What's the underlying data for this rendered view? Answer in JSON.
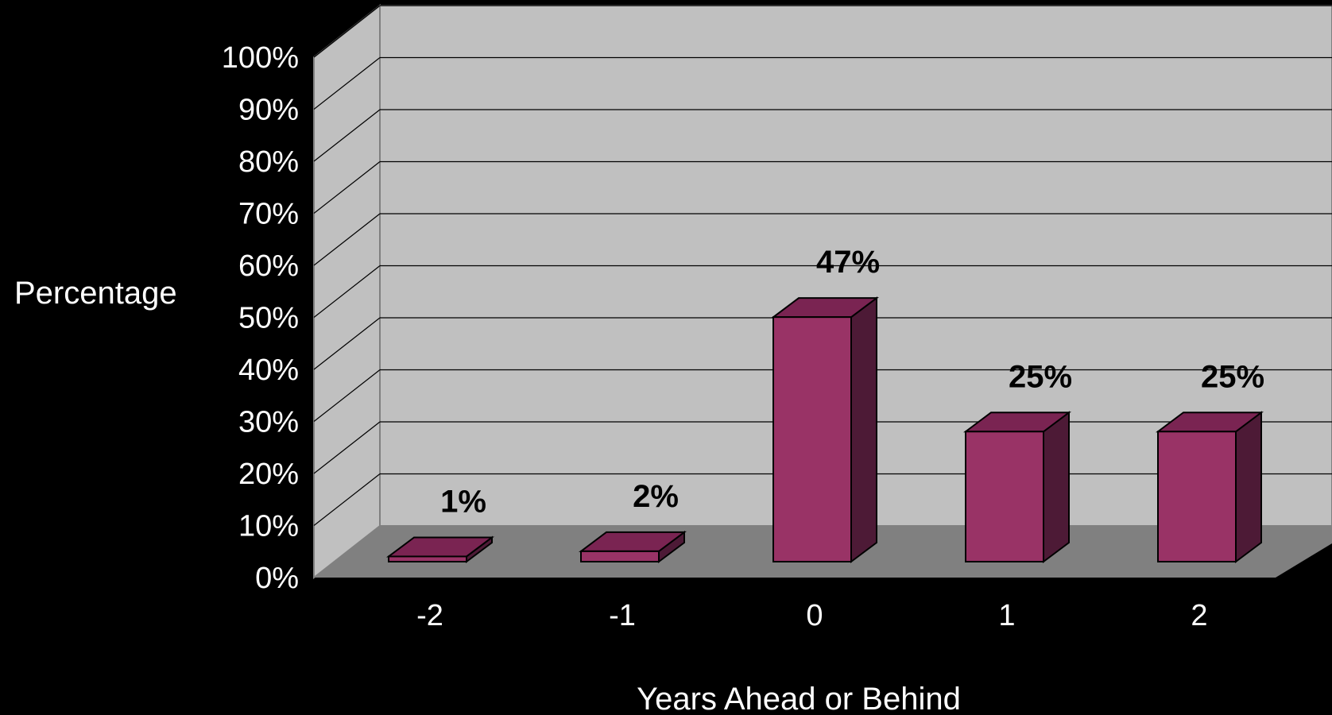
{
  "chart_data": {
    "type": "bar",
    "categories": [
      "-2",
      "-1",
      "0",
      "1",
      "2"
    ],
    "values": [
      1,
      2,
      47,
      25,
      25
    ],
    "data_labels": [
      "1%",
      "2%",
      "47%",
      "25%",
      "25%"
    ],
    "xlabel": "Years Ahead or Behind",
    "ylabel": "Percentage",
    "ylim": [
      0,
      100
    ],
    "yticks": [
      "0%",
      "10%",
      "20%",
      "30%",
      "40%",
      "50%",
      "60%",
      "70%",
      "80%",
      "90%",
      "100%"
    ],
    "grid": true,
    "legend": "none",
    "style": "3d-column",
    "colors": {
      "background": "#000000",
      "back_wall": "#c0c0c0",
      "side_wall": "#c0c0c0",
      "floor": "#808080",
      "gridline": "#000000",
      "bar_front": "#993366",
      "bar_top": "#7a2452",
      "bar_side": "#4d1a36",
      "bar_edge": "#000000",
      "tick_text": "#ffffff",
      "data_label_text": "#000000"
    }
  }
}
